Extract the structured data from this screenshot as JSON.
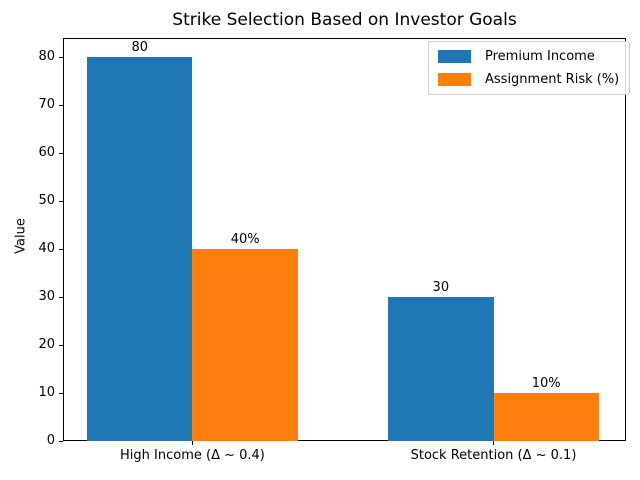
{
  "chart_data": {
    "type": "bar",
    "title": "Strike Selection Based on Investor Goals",
    "categories": [
      "High Income (Δ ~ 0.4)",
      "Stock Retention (Δ ~ 0.1)"
    ],
    "series": [
      {
        "name": "Premium Income",
        "color": "#1f77b4",
        "values": [
          80,
          30
        ],
        "value_labels": [
          "80",
          "30"
        ]
      },
      {
        "name": "Assignment Risk (%)",
        "color": "#ff7f0e",
        "values": [
          40,
          10
        ],
        "value_labels": [
          "40%",
          "10%"
        ]
      }
    ],
    "xlabel": "",
    "ylabel": "Value",
    "ylim": [
      0,
      84
    ],
    "yticks": [
      0,
      10,
      20,
      30,
      40,
      50,
      60,
      70,
      80
    ],
    "xlim": [
      -0.43,
      1.44
    ],
    "bar_width": 0.35,
    "grid": false,
    "legend_position": "upper right"
  }
}
